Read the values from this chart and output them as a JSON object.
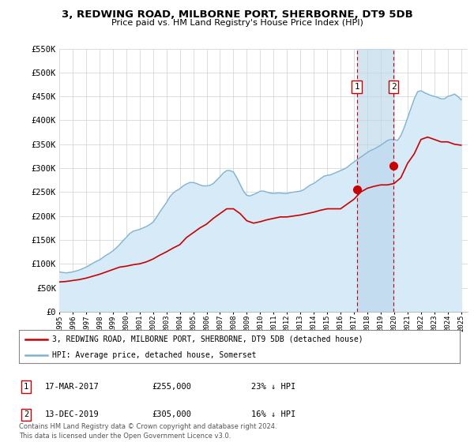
{
  "title": "3, REDWING ROAD, MILBORNE PORT, SHERBORNE, DT9 5DB",
  "subtitle": "Price paid vs. HM Land Registry's House Price Index (HPI)",
  "ylim": [
    0,
    550000
  ],
  "xlim_start": 1995.0,
  "xlim_end": 2025.5,
  "yticks": [
    0,
    50000,
    100000,
    150000,
    200000,
    250000,
    300000,
    350000,
    400000,
    450000,
    500000,
    550000
  ],
  "ytick_labels": [
    "£0",
    "£50K",
    "£100K",
    "£150K",
    "£200K",
    "£250K",
    "£300K",
    "£350K",
    "£400K",
    "£450K",
    "£500K",
    "£550K"
  ],
  "xticks": [
    1995,
    1996,
    1997,
    1998,
    1999,
    2000,
    2001,
    2002,
    2003,
    2004,
    2005,
    2006,
    2007,
    2008,
    2009,
    2010,
    2011,
    2012,
    2013,
    2014,
    2015,
    2016,
    2017,
    2018,
    2019,
    2020,
    2021,
    2022,
    2023,
    2024,
    2025
  ],
  "red_line_color": "#cc0000",
  "blue_line_color": "#7fb3d3",
  "blue_fill_color": "#d6eaf8",
  "marker_color": "#cc0000",
  "vline1_x": 2017.21,
  "vline2_x": 2019.95,
  "vline_color": "#cc0000",
  "shade_color": "#d6eaf8",
  "sale1_x": 2017.21,
  "sale1_y": 255000,
  "sale2_x": 2019.95,
  "sale2_y": 305000,
  "legend_line1": "3, REDWING ROAD, MILBORNE PORT, SHERBORNE, DT9 5DB (detached house)",
  "legend_line2": "HPI: Average price, detached house, Somerset",
  "note1_date": "17-MAR-2017",
  "note1_price": "£255,000",
  "note1_hpi": "23% ↓ HPI",
  "note2_date": "13-DEC-2019",
  "note2_price": "£305,000",
  "note2_hpi": "16% ↓ HPI",
  "footer": "Contains HM Land Registry data © Crown copyright and database right 2024.\nThis data is licensed under the Open Government Licence v3.0.",
  "hpi_x": [
    1995.0,
    1995.25,
    1995.5,
    1995.75,
    1996.0,
    1996.25,
    1996.5,
    1996.75,
    1997.0,
    1997.25,
    1997.5,
    1997.75,
    1998.0,
    1998.25,
    1998.5,
    1998.75,
    1999.0,
    1999.25,
    1999.5,
    1999.75,
    2000.0,
    2000.25,
    2000.5,
    2000.75,
    2001.0,
    2001.25,
    2001.5,
    2001.75,
    2002.0,
    2002.25,
    2002.5,
    2002.75,
    2003.0,
    2003.25,
    2003.5,
    2003.75,
    2004.0,
    2004.25,
    2004.5,
    2004.75,
    2005.0,
    2005.25,
    2005.5,
    2005.75,
    2006.0,
    2006.25,
    2006.5,
    2006.75,
    2007.0,
    2007.25,
    2007.5,
    2007.75,
    2008.0,
    2008.25,
    2008.5,
    2008.75,
    2009.0,
    2009.25,
    2009.5,
    2009.75,
    2010.0,
    2010.25,
    2010.5,
    2010.75,
    2011.0,
    2011.25,
    2011.5,
    2011.75,
    2012.0,
    2012.25,
    2012.5,
    2012.75,
    2013.0,
    2013.25,
    2013.5,
    2013.75,
    2014.0,
    2014.25,
    2014.5,
    2014.75,
    2015.0,
    2015.25,
    2015.5,
    2015.75,
    2016.0,
    2016.25,
    2016.5,
    2016.75,
    2017.0,
    2017.25,
    2017.5,
    2017.75,
    2018.0,
    2018.25,
    2018.5,
    2018.75,
    2019.0,
    2019.25,
    2019.5,
    2019.75,
    2020.0,
    2020.25,
    2020.5,
    2020.75,
    2021.0,
    2021.25,
    2021.5,
    2021.75,
    2022.0,
    2022.25,
    2022.5,
    2022.75,
    2023.0,
    2023.25,
    2023.5,
    2023.75,
    2024.0,
    2024.25,
    2024.5,
    2024.75,
    2025.0
  ],
  "hpi_y": [
    83000,
    82000,
    81000,
    82000,
    83000,
    85000,
    87000,
    90000,
    93000,
    97000,
    101000,
    105000,
    108000,
    113000,
    118000,
    122000,
    127000,
    133000,
    140000,
    148000,
    155000,
    163000,
    168000,
    170000,
    172000,
    175000,
    178000,
    182000,
    187000,
    197000,
    208000,
    218000,
    228000,
    240000,
    248000,
    253000,
    257000,
    263000,
    267000,
    270000,
    270000,
    268000,
    265000,
    263000,
    263000,
    264000,
    268000,
    275000,
    282000,
    290000,
    295000,
    295000,
    292000,
    280000,
    266000,
    252000,
    243000,
    242000,
    245000,
    248000,
    252000,
    252000,
    250000,
    248000,
    247000,
    248000,
    248000,
    247000,
    247000,
    249000,
    250000,
    251000,
    252000,
    255000,
    260000,
    265000,
    268000,
    273000,
    278000,
    283000,
    285000,
    286000,
    289000,
    292000,
    295000,
    298000,
    302000,
    308000,
    313000,
    318000,
    323000,
    328000,
    333000,
    337000,
    340000,
    344000,
    348000,
    353000,
    358000,
    360000,
    360000,
    358000,
    368000,
    385000,
    405000,
    425000,
    445000,
    460000,
    462000,
    458000,
    455000,
    452000,
    450000,
    448000,
    445000,
    445000,
    450000,
    452000,
    455000,
    450000,
    443000
  ],
  "price_x": [
    1995.0,
    1995.5,
    1996.0,
    1996.5,
    1997.0,
    1997.5,
    1998.0,
    1998.5,
    1999.0,
    1999.5,
    2000.0,
    2000.5,
    2001.0,
    2001.5,
    2002.0,
    2002.5,
    2003.0,
    2003.5,
    2004.0,
    2004.5,
    2005.0,
    2005.5,
    2006.0,
    2006.5,
    2007.0,
    2007.5,
    2008.0,
    2008.5,
    2009.0,
    2009.5,
    2010.0,
    2010.5,
    2011.0,
    2011.5,
    2012.0,
    2012.5,
    2013.0,
    2013.5,
    2014.0,
    2014.5,
    2015.0,
    2015.5,
    2016.0,
    2016.5,
    2017.0,
    2017.5,
    2018.0,
    2018.5,
    2019.0,
    2019.5,
    2020.0,
    2020.5,
    2021.0,
    2021.5,
    2022.0,
    2022.5,
    2023.0,
    2023.5,
    2024.0,
    2024.5,
    2025.0
  ],
  "price_y": [
    62000,
    63000,
    65000,
    67000,
    70000,
    74000,
    78000,
    83000,
    88000,
    93000,
    95000,
    98000,
    100000,
    104000,
    110000,
    118000,
    125000,
    133000,
    140000,
    155000,
    165000,
    175000,
    183000,
    195000,
    205000,
    215000,
    215000,
    205000,
    190000,
    185000,
    188000,
    192000,
    195000,
    198000,
    198000,
    200000,
    202000,
    205000,
    208000,
    212000,
    215000,
    215000,
    215000,
    225000,
    235000,
    250000,
    258000,
    262000,
    265000,
    265000,
    268000,
    280000,
    310000,
    330000,
    360000,
    365000,
    360000,
    355000,
    355000,
    350000,
    348000
  ]
}
